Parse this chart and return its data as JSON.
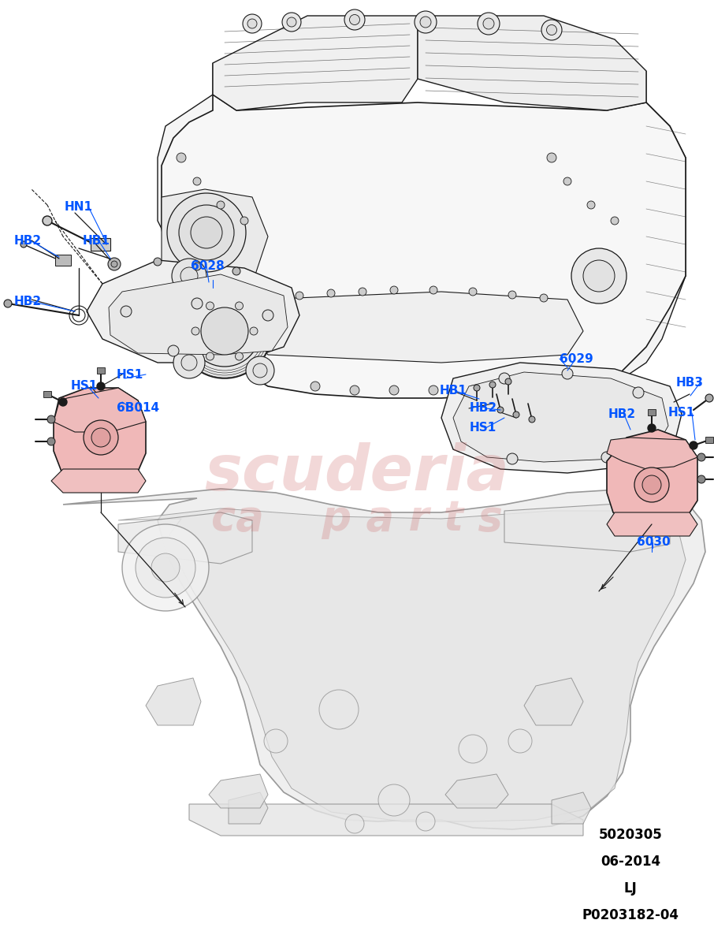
{
  "bg_color": "#FFFFFF",
  "watermark_line1": "scuderia",
  "watermark_line2": "ca    p a r t s",
  "watermark_color": "#D4808080",
  "label_color": "#0055FF",
  "line_color": "#1A1A1A",
  "part_line_color": "#888888",
  "bottom_info": [
    "5020305",
    "06-2014",
    "LJ",
    "P0203182-04"
  ],
  "figsize": [
    9.06,
    12.0
  ],
  "dpi": 100,
  "engine_color": "#F8F8F8",
  "bracket_color": "#F2F2F2",
  "mount_fill": "#F0B8B8",
  "subframe_color": "#EBEBEB"
}
